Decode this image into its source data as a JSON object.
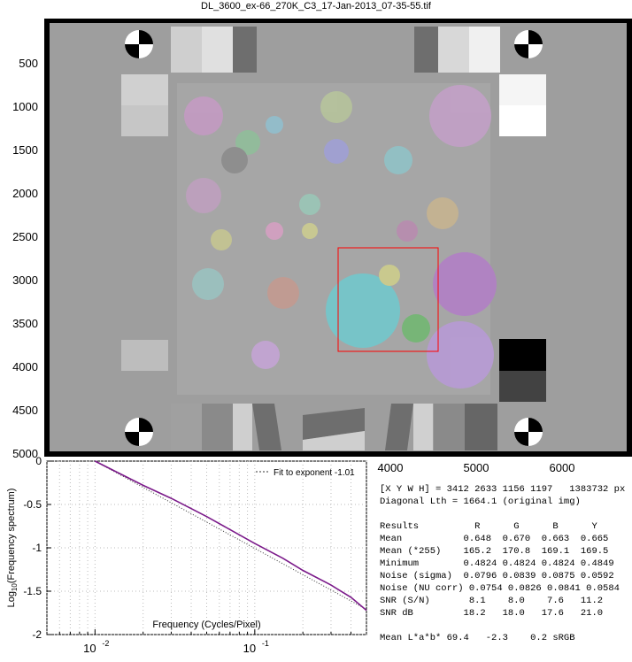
{
  "window": {
    "title": "DL_3600_ex-66_270K_C3_17-Jan-2013_07-35-55.tif"
  },
  "image_panel": {
    "y_ticks": [
      "500",
      "1000",
      "1500",
      "2000",
      "2500",
      "3000",
      "3500",
      "4000",
      "4500",
      "5000"
    ],
    "x_ticks": [
      "4000",
      "5000",
      "6000"
    ]
  },
  "results": {
    "line1": "[X Y W H] = 3412 2633 1156 1197   1383732 px",
    "line2": "Diagonal Lth = 1664.1 (original img)",
    "header": "Results          R      G      B      Y",
    "rows": [
      "Mean           0.648  0.670  0.663  0.665",
      "Mean (*255)    165.2  170.8  169.1  169.5",
      "Minimum        0.4824 0.4824 0.4824 0.4849",
      "Noise (sigma)  0.0796 0.0839 0.0875 0.0592",
      "Noise (NU corr) 0.0754 0.0826 0.0841 0.0584",
      "SNR (S/N)       8.1    8.0    7.6   11.2",
      "SNR dB         18.2   18.0   17.6   21.0"
    ],
    "lab": "Mean L*a*b* 69.4   -2.3    0.2 sRGB"
  },
  "chart_data": {
    "type": "line",
    "title": "",
    "xlabel": "Frequency (Cycles/Pixel)",
    "ylabel": "Log10(Frequency spectrum)",
    "ylabel_base": "Log",
    "ylabel_sub": "10",
    "ylabel_rest": "(Frequency spectrum)",
    "x_scale": "log",
    "xlim": [
      0.005,
      0.5
    ],
    "ylim": [
      -2,
      0
    ],
    "x_tick_labels": [
      {
        "value": 0.01,
        "base": "10",
        "exp": "-2"
      },
      {
        "value": 0.1,
        "base": "10",
        "exp": "-1"
      }
    ],
    "y_tick_labels": [
      "0",
      "-0.5",
      "-1",
      "-1.5",
      "-2"
    ],
    "y_ticks": [
      0,
      -0.5,
      -1,
      -1.5,
      -2
    ],
    "grid": true,
    "legend": {
      "position": "top-right",
      "entries": [
        "Fit to exponent -1.01"
      ]
    },
    "series": [
      {
        "color": "#7b1a8a",
        "x": [
          0.01,
          0.02,
          0.03,
          0.05,
          0.07,
          0.1,
          0.15,
          0.2,
          0.3,
          0.4,
          0.5
        ],
        "y": [
          0.0,
          -0.28,
          -0.43,
          -0.64,
          -0.79,
          -0.95,
          -1.12,
          -1.26,
          -1.43,
          -1.57,
          -1.72
        ]
      }
    ],
    "fit_line": {
      "style": "dotted",
      "x": [
        0.01,
        0.5
      ],
      "y": [
        0.0,
        -1.71
      ]
    }
  },
  "colors": {
    "image_gray": "#9e9e9e",
    "roi_rect": "#ff0000",
    "curve": "#7b1a8a"
  }
}
